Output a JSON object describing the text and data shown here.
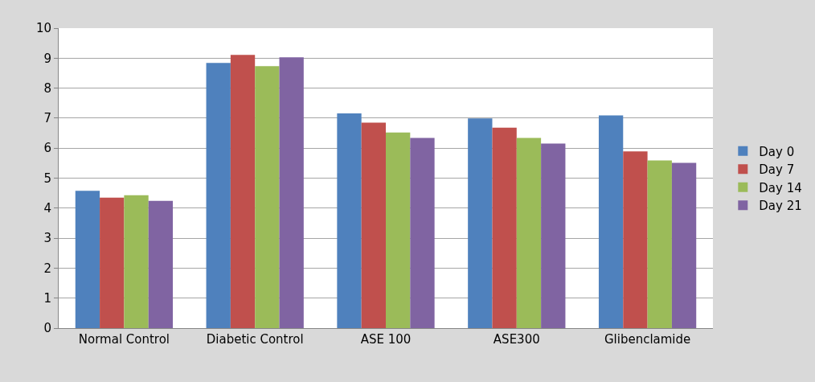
{
  "chart_data": {
    "type": "bar",
    "categories": [
      "Normal Control",
      "Diabetic Control",
      "ASE 100",
      "ASE300",
      "Glibenclamide"
    ],
    "series": [
      {
        "name": "Day 0",
        "color": "#4f81bd",
        "values": [
          4.58,
          8.84,
          7.16,
          6.99,
          7.09
        ]
      },
      {
        "name": "Day 7",
        "color": "#c0504d",
        "values": [
          4.35,
          9.11,
          6.85,
          6.68,
          5.89
        ]
      },
      {
        "name": "Day 14",
        "color": "#9bbb59",
        "values": [
          4.43,
          8.73,
          6.52,
          6.34,
          5.59
        ]
      },
      {
        "name": "Day 21",
        "color": "#8064a2",
        "values": [
          4.24,
          9.03,
          6.34,
          6.15,
          5.51
        ]
      }
    ],
    "ylim": [
      0,
      10
    ],
    "yticks": [
      0,
      1,
      2,
      3,
      4,
      5,
      6,
      7,
      8,
      9,
      10
    ],
    "grid": "y",
    "legend": "right"
  }
}
